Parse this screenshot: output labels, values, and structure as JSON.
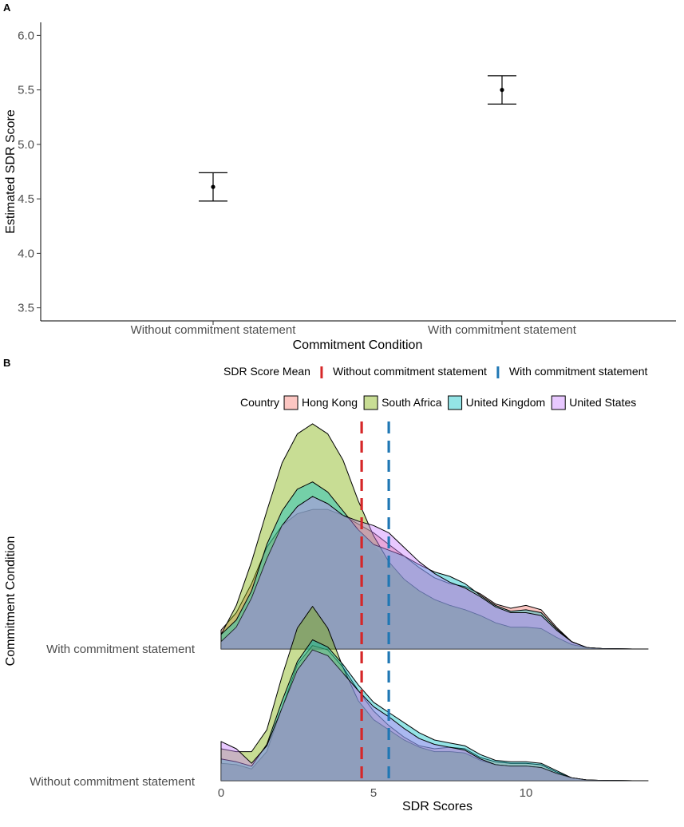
{
  "chart_data": [
    {
      "panel": "A",
      "type": "errorbar",
      "title": "",
      "xlabel": "Commitment Condition",
      "ylabel": "Estimated SDR Score",
      "ylim": [
        3.38,
        6.12
      ],
      "yticks": [
        3.5,
        4.0,
        4.5,
        5.0,
        5.5,
        6.0
      ],
      "ytick_labels": [
        "3.5",
        "4.0",
        "4.5",
        "5.0",
        "5.5",
        "6.0"
      ],
      "categories": [
        "Without commitment statement",
        "With commitment statement"
      ],
      "values": [
        4.61,
        5.5
      ],
      "lower": [
        4.48,
        5.37
      ],
      "upper": [
        4.74,
        5.63
      ]
    },
    {
      "panel": "B",
      "type": "area",
      "title": "",
      "xlabel": "SDR Scores",
      "ylabel": "Commitment Condition",
      "xlim": [
        -0.3,
        14.7
      ],
      "xticks": [
        0,
        5,
        10
      ],
      "xtick_labels": [
        "0",
        "5",
        "10"
      ],
      "rows": [
        "Without commitment statement",
        "With commitment statement"
      ],
      "mean_legend_title": "SDR Score Mean",
      "means": [
        {
          "name": "Without commitment statement",
          "value": 4.61,
          "color": "#d62728"
        },
        {
          "name": "With commitment statement",
          "value": 5.5,
          "color": "#1f77b4"
        }
      ],
      "country_legend_title": "Country",
      "x": [
        0,
        0.5,
        1,
        1.5,
        2,
        2.5,
        3,
        3.5,
        4,
        4.5,
        5,
        5.5,
        6,
        6.5,
        7,
        7.5,
        8,
        8.5,
        9,
        9.5,
        10,
        10.5,
        11,
        11.5,
        12,
        12.5,
        13,
        13.5,
        14
      ],
      "series": [
        {
          "name": "Hong Kong",
          "color": "#F8766D",
          "with": [
            0.13,
            0.25,
            0.45,
            0.7,
            0.85,
            0.93,
            0.96,
            0.96,
            0.92,
            0.86,
            0.8,
            0.72,
            0.64,
            0.56,
            0.49,
            0.45,
            0.43,
            0.38,
            0.31,
            0.28,
            0.3,
            0.27,
            0.15,
            0.05,
            0.01,
            0.003,
            0.001,
            0,
            0
          ],
          "without": [
            0.12,
            0.11,
            0.08,
            0.2,
            0.5,
            0.8,
            0.93,
            0.9,
            0.78,
            0.62,
            0.48,
            0.38,
            0.3,
            0.24,
            0.22,
            0.23,
            0.22,
            0.16,
            0.13,
            0.12,
            0.12,
            0.11,
            0.06,
            0.02,
            0.005,
            0.002,
            0.001,
            0,
            0
          ]
        },
        {
          "name": "South Africa",
          "color": "#7CAE00",
          "with": [
            0.1,
            0.3,
            0.6,
            0.95,
            1.28,
            1.48,
            1.55,
            1.48,
            1.3,
            1.02,
            0.78,
            0.6,
            0.48,
            0.4,
            0.34,
            0.3,
            0.27,
            0.23,
            0.18,
            0.15,
            0.15,
            0.14,
            0.08,
            0.03,
            0.01,
            0.003,
            0.001,
            0,
            0
          ],
          "without": [
            0.22,
            0.2,
            0.2,
            0.35,
            0.72,
            1.05,
            1.2,
            1.05,
            0.78,
            0.55,
            0.42,
            0.35,
            0.28,
            0.23,
            0.2,
            0.2,
            0.19,
            0.14,
            0.11,
            0.1,
            0.1,
            0.09,
            0.05,
            0.02,
            0.005,
            0.002,
            0.001,
            0,
            0
          ]
        },
        {
          "name": "United Kingdom",
          "color": "#00BFC4",
          "with": [
            0.1,
            0.2,
            0.4,
            0.72,
            0.95,
            1.1,
            1.15,
            1.08,
            0.95,
            0.82,
            0.72,
            0.68,
            0.64,
            0.58,
            0.53,
            0.5,
            0.45,
            0.37,
            0.3,
            0.26,
            0.27,
            0.25,
            0.14,
            0.05,
            0.01,
            0.003,
            0.001,
            0,
            0
          ],
          "without": [
            0.15,
            0.13,
            0.1,
            0.25,
            0.55,
            0.82,
            0.97,
            0.92,
            0.8,
            0.66,
            0.54,
            0.47,
            0.4,
            0.33,
            0.28,
            0.26,
            0.24,
            0.18,
            0.14,
            0.13,
            0.13,
            0.12,
            0.07,
            0.02,
            0.005,
            0.002,
            0.001,
            0,
            0
          ]
        },
        {
          "name": "United States",
          "color": "#C77CFF",
          "with": [
            0.05,
            0.15,
            0.35,
            0.62,
            0.85,
            0.98,
            1.05,
            1.0,
            0.92,
            0.88,
            0.85,
            0.8,
            0.7,
            0.6,
            0.52,
            0.46,
            0.42,
            0.36,
            0.29,
            0.25,
            0.25,
            0.23,
            0.13,
            0.05,
            0.01,
            0.003,
            0.001,
            0,
            0
          ],
          "without": [
            0.27,
            0.22,
            0.12,
            0.24,
            0.5,
            0.76,
            0.9,
            0.86,
            0.74,
            0.62,
            0.51,
            0.44,
            0.36,
            0.29,
            0.25,
            0.23,
            0.21,
            0.15,
            0.11,
            0.1,
            0.1,
            0.09,
            0.05,
            0.02,
            0.005,
            0.002,
            0.001,
            0,
            0
          ]
        }
      ]
    }
  ],
  "panels": {
    "a_label": "A",
    "b_label": "B"
  }
}
